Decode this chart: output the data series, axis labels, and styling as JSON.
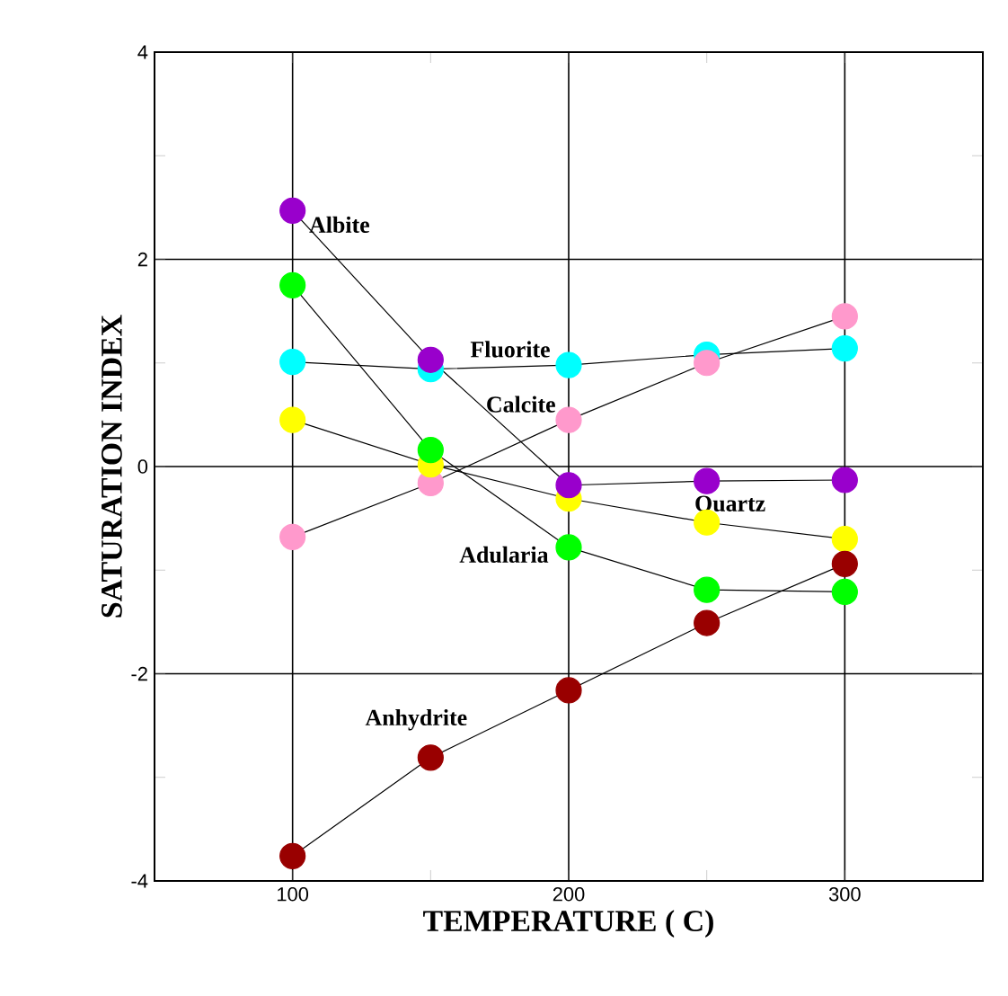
{
  "chart_data": {
    "type": "line",
    "xlabel": "TEMPERATURE ( C)",
    "ylabel": "SATURATION INDEX",
    "x": [
      100,
      150,
      200,
      250,
      300
    ],
    "series": [
      {
        "name": "Fluorite",
        "color": "#00ffff",
        "values": [
          1.01,
          0.94,
          0.98,
          1.08,
          1.14
        ]
      },
      {
        "name": "Calcite",
        "color": "#ff99cc",
        "values": [
          -0.68,
          -0.16,
          0.45,
          1.0,
          1.45
        ]
      },
      {
        "name": "Quartz",
        "color": "#ffff00",
        "values": [
          0.45,
          0.02,
          -0.31,
          -0.54,
          -0.7
        ]
      },
      {
        "name": "Adularia",
        "color": "#00ff00",
        "values": [
          1.75,
          0.16,
          -0.78,
          -1.19,
          -1.21
        ]
      },
      {
        "name": "Anhydrite",
        "color": "#990000",
        "values": [
          -3.76,
          -2.81,
          -2.16,
          -1.51,
          -0.94
        ]
      },
      {
        "name": "Albite",
        "color": "#9900cc",
        "values": [
          2.47,
          1.03,
          -0.18,
          -0.14,
          -0.13
        ]
      }
    ],
    "xlim": [
      50,
      350
    ],
    "ylim": [
      -4,
      4
    ],
    "xticks": [
      100,
      {
        "value": 150,
        "label": null
      },
      200,
      {
        "value": 250,
        "label": null
      },
      300
    ],
    "yticks": [
      -4,
      {
        "value": -3,
        "label": null
      },
      -2,
      {
        "value": -1,
        "label": null
      },
      0,
      {
        "value": 1,
        "label": null
      },
      2,
      {
        "value": 3,
        "label": null
      },
      4
    ],
    "grid": true,
    "legend": false,
    "marker": "circle",
    "line_style": "solid"
  }
}
